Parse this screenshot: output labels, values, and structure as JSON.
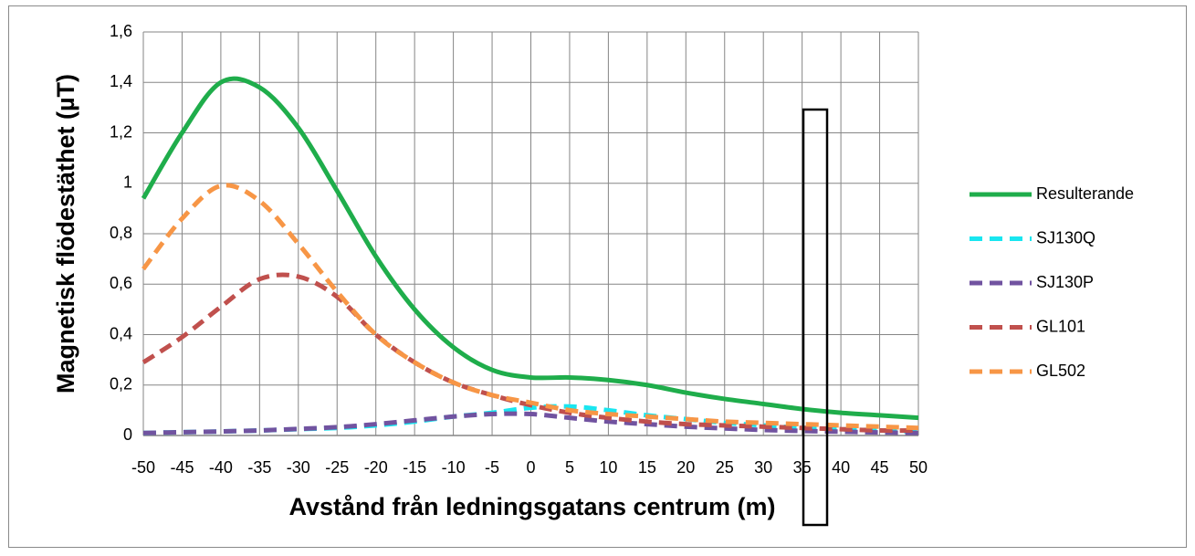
{
  "chart_data": {
    "type": "line",
    "x_label": "Avstånd från ledningsgatans centrum (m)",
    "y_label": "Magnetisk flödestäthet (µT)",
    "x": [
      -50,
      -45,
      -40,
      -35,
      -30,
      -25,
      -20,
      -15,
      -10,
      -5,
      0,
      5,
      10,
      15,
      20,
      25,
      30,
      35,
      40,
      45,
      50
    ],
    "series": [
      {
        "name": "Resulterande",
        "color": "#1fad4b",
        "style": "solid",
        "values": [
          0.94,
          1.2,
          1.4,
          1.38,
          1.22,
          0.97,
          0.71,
          0.5,
          0.35,
          0.26,
          0.23,
          0.23,
          0.22,
          0.2,
          0.17,
          0.145,
          0.125,
          0.105,
          0.09,
          0.08,
          0.07
        ]
      },
      {
        "name": "SJ130Q",
        "color": "#19e6f0",
        "style": "dashed",
        "values": [
          0.01,
          0.013,
          0.016,
          0.02,
          0.025,
          0.03,
          0.04,
          0.055,
          0.075,
          0.09,
          0.11,
          0.115,
          0.1,
          0.08,
          0.065,
          0.05,
          0.04,
          0.03,
          0.025,
          0.02,
          0.015
        ]
      },
      {
        "name": "SJ130P",
        "color": "#7153a0",
        "style": "dashed",
        "values": [
          0.01,
          0.013,
          0.016,
          0.02,
          0.026,
          0.033,
          0.045,
          0.06,
          0.075,
          0.085,
          0.085,
          0.07,
          0.055,
          0.045,
          0.035,
          0.028,
          0.022,
          0.018,
          0.015,
          0.012,
          0.01
        ]
      },
      {
        "name": "GL101",
        "color": "#c0504d",
        "style": "dashed",
        "values": [
          0.29,
          0.39,
          0.51,
          0.62,
          0.63,
          0.55,
          0.4,
          0.29,
          0.21,
          0.16,
          0.12,
          0.09,
          0.07,
          0.055,
          0.045,
          0.04,
          0.035,
          0.03,
          0.025,
          0.02,
          0.02
        ]
      },
      {
        "name": "GL502",
        "color": "#f79646",
        "style": "dashed",
        "values": [
          0.66,
          0.86,
          0.99,
          0.93,
          0.76,
          0.57,
          0.4,
          0.29,
          0.21,
          0.16,
          0.13,
          0.1,
          0.085,
          0.075,
          0.065,
          0.055,
          0.05,
          0.045,
          0.04,
          0.035,
          0.03
        ]
      }
    ],
    "xlim": [
      -50,
      50
    ],
    "xticks": [
      -50,
      -45,
      -40,
      -35,
      -30,
      -25,
      -20,
      -15,
      -10,
      -5,
      0,
      5,
      10,
      15,
      20,
      25,
      30,
      35,
      40,
      45,
      50
    ],
    "ylim": [
      0,
      1.6
    ],
    "yticks": [
      0,
      {
        "value": 0.2,
        "label": "0,2"
      },
      {
        "value": 0.4,
        "label": "0,4"
      },
      {
        "value": 0.6,
        "label": "0,6"
      },
      {
        "value": 0.8,
        "label": "0,8"
      },
      1,
      {
        "value": 1.2,
        "label": "1,2"
      },
      {
        "value": 1.4,
        "label": "1,4"
      },
      {
        "value": 1.6,
        "label": "1,6"
      }
    ],
    "grid": true,
    "legend": "right"
  }
}
